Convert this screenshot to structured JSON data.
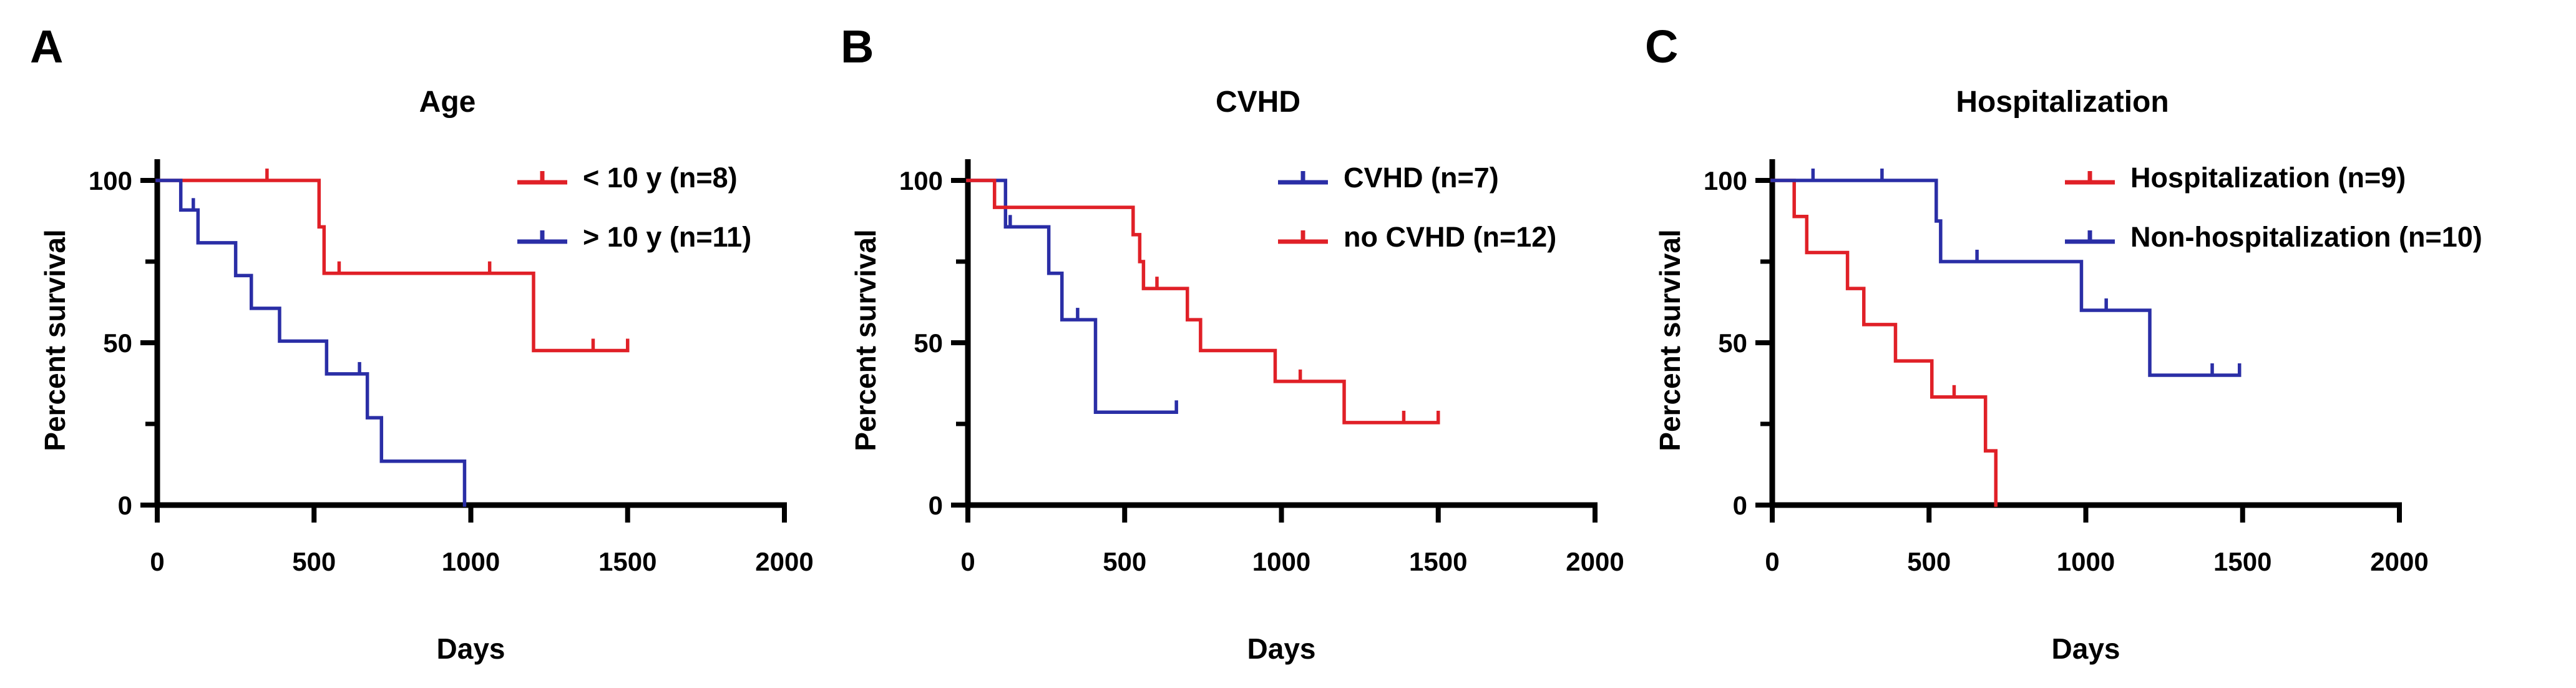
{
  "figure_type": "kaplan-meier-survival-figure",
  "colors": {
    "red": "#e02027",
    "blue": "#2a2ea6",
    "axis": "#000000"
  },
  "panels": [
    {
      "letter": "A",
      "title": "Age",
      "xlabel": "Days",
      "ylabel": "Percent survival",
      "legend": [
        {
          "label": "< 10 y (n=8)",
          "color": "#e02027"
        },
        {
          "label": "> 10 y (n=11)",
          "color": "#2a2ea6"
        }
      ]
    },
    {
      "letter": "B",
      "title": "CVHD",
      "xlabel": "Days",
      "ylabel": "Percent survival",
      "legend": [
        {
          "label": "CVHD (n=7)",
          "color": "#2a2ea6"
        },
        {
          "label": "no CVHD (n=12)",
          "color": "#e02027"
        }
      ]
    },
    {
      "letter": "C",
      "title": "Hospitalization",
      "xlabel": "Days",
      "ylabel": "Percent survival",
      "legend": [
        {
          "label": "Hospitalization (n=9)",
          "color": "#e02027"
        },
        {
          "label": "Non-hospitalization (n=10)",
          "color": "#2a2ea6"
        }
      ]
    }
  ],
  "chart_data": [
    {
      "type": "line",
      "subtype": "kaplan-meier-step",
      "title": "Age",
      "xlabel": "Days",
      "ylabel": "Percent survival",
      "xlim": [
        0,
        2000
      ],
      "ylim": [
        0,
        100
      ],
      "x_ticks": [
        0,
        500,
        1000,
        1500,
        2000
      ],
      "y_ticks_major": [
        0,
        50,
        100
      ],
      "y_ticks_minor": [
        25,
        75
      ],
      "grid": false,
      "legend_position": "top-right-inside",
      "series": [
        {
          "name": "< 10 y (n=8)",
          "color": "#e02027",
          "n": 8,
          "points": [
            [
              0,
              100
            ],
            [
              516,
              100
            ],
            [
              516,
              85.7
            ],
            [
              532,
              85.7
            ],
            [
              532,
              71.4
            ],
            [
              1200,
              71.4
            ],
            [
              1200,
              47.6
            ],
            [
              1500,
              47.6
            ]
          ],
          "censor_marks": [
            [
              350,
              100
            ],
            [
              580,
              71.4
            ],
            [
              1060,
              71.4
            ],
            [
              1390,
              47.6
            ],
            [
              1500,
              47.6
            ]
          ]
        },
        {
          "name": "> 10 y (n=11)",
          "color": "#2a2ea6",
          "n": 11,
          "points": [
            [
              0,
              100
            ],
            [
              75,
              100
            ],
            [
              75,
              90.9
            ],
            [
              130,
              90.9
            ],
            [
              130,
              80.8
            ],
            [
              250,
              80.8
            ],
            [
              250,
              70.7
            ],
            [
              300,
              70.7
            ],
            [
              300,
              60.6
            ],
            [
              390,
              60.6
            ],
            [
              390,
              50.5
            ],
            [
              540,
              50.5
            ],
            [
              540,
              40.4
            ],
            [
              670,
              40.4
            ],
            [
              670,
              26.9
            ],
            [
              715,
              26.9
            ],
            [
              715,
              13.5
            ],
            [
              980,
              13.5
            ],
            [
              980,
              0
            ]
          ],
          "censor_marks": [
            [
              115,
              90.9
            ],
            [
              645,
              40.4
            ]
          ]
        }
      ]
    },
    {
      "type": "line",
      "subtype": "kaplan-meier-step",
      "title": "CVHD",
      "xlabel": "Days",
      "ylabel": "Percent survival",
      "xlim": [
        0,
        2000
      ],
      "ylim": [
        0,
        100
      ],
      "x_ticks": [
        0,
        500,
        1000,
        1500,
        2000
      ],
      "y_ticks_major": [
        0,
        50,
        100
      ],
      "y_ticks_minor": [
        25,
        75
      ],
      "grid": false,
      "legend_position": "top-right-inside",
      "series": [
        {
          "name": "CVHD (n=7)",
          "color": "#2a2ea6",
          "n": 7,
          "points": [
            [
              0,
              100
            ],
            [
              120,
              100
            ],
            [
              120,
              85.7
            ],
            [
              258,
              85.7
            ],
            [
              258,
              71.4
            ],
            [
              300,
              71.4
            ],
            [
              300,
              57.1
            ],
            [
              407,
              57.1
            ],
            [
              407,
              28.6
            ],
            [
              665,
              28.6
            ]
          ],
          "censor_marks": [
            [
              135,
              85.7
            ],
            [
              350,
              57.1
            ],
            [
              665,
              28.6
            ]
          ]
        },
        {
          "name": "no CVHD (n=12)",
          "color": "#e02027",
          "n": 12,
          "points": [
            [
              0,
              100
            ],
            [
              85,
              100
            ],
            [
              85,
              91.7
            ],
            [
              527,
              91.7
            ],
            [
              527,
              83.3
            ],
            [
              548,
              83.3
            ],
            [
              548,
              75
            ],
            [
              560,
              75
            ],
            [
              560,
              66.7
            ],
            [
              700,
              66.7
            ],
            [
              700,
              57.1
            ],
            [
              742,
              57.1
            ],
            [
              742,
              47.6
            ],
            [
              980,
              47.6
            ],
            [
              980,
              38.1
            ],
            [
              1200,
              38.1
            ],
            [
              1200,
              25.4
            ],
            [
              1500,
              25.4
            ]
          ],
          "censor_marks": [
            [
              603,
              66.7
            ],
            [
              1060,
              38.1
            ],
            [
              1390,
              25.4
            ],
            [
              1500,
              25.4
            ]
          ]
        }
      ]
    },
    {
      "type": "line",
      "subtype": "kaplan-meier-step",
      "title": "Hospitalization",
      "xlabel": "Days",
      "ylabel": "Percent survival",
      "xlim": [
        0,
        2000
      ],
      "ylim": [
        0,
        100
      ],
      "x_ticks": [
        0,
        500,
        1000,
        1500,
        2000
      ],
      "y_ticks_major": [
        0,
        50,
        100
      ],
      "y_ticks_minor": [
        25,
        75
      ],
      "grid": false,
      "legend_position": "top-right-inside",
      "series": [
        {
          "name": "Hospitalization (n=9)",
          "color": "#e02027",
          "n": 9,
          "points": [
            [
              0,
              100
            ],
            [
              70,
              100
            ],
            [
              70,
              88.9
            ],
            [
              110,
              88.9
            ],
            [
              110,
              77.8
            ],
            [
              240,
              77.8
            ],
            [
              240,
              66.7
            ],
            [
              292,
              66.7
            ],
            [
              292,
              55.6
            ],
            [
              393,
              55.6
            ],
            [
              393,
              44.4
            ],
            [
              509,
              44.4
            ],
            [
              509,
              33.3
            ],
            [
              680,
              33.3
            ],
            [
              680,
              16.7
            ],
            [
              713,
              16.7
            ],
            [
              713,
              0
            ]
          ],
          "censor_marks": [
            [
              580,
              33.3
            ]
          ]
        },
        {
          "name": "Non-hospitalization (n=10)",
          "color": "#2a2ea6",
          "n": 10,
          "points": [
            [
              0,
              100
            ],
            [
              523,
              100
            ],
            [
              523,
              87.5
            ],
            [
              537,
              87.5
            ],
            [
              537,
              75
            ],
            [
              986,
              75
            ],
            [
              986,
              60
            ],
            [
              1204,
              60
            ],
            [
              1204,
              40
            ],
            [
              1490,
              40
            ]
          ],
          "censor_marks": [
            [
              130,
              100
            ],
            [
              350,
              100
            ],
            [
              653,
              75
            ],
            [
              1065,
              60
            ],
            [
              1403,
              40
            ],
            [
              1490,
              40
            ]
          ]
        }
      ]
    }
  ]
}
